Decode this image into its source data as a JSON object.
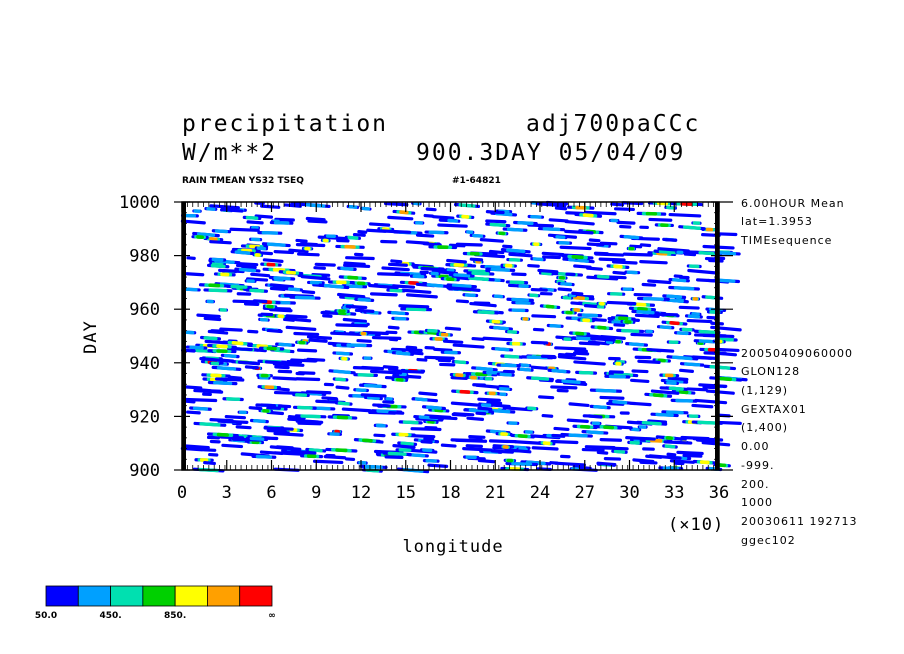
{
  "header": {
    "title_left": "precipitation",
    "title_right": "adj700paCCc",
    "units": "W/m**2",
    "time_stamp": "900.3DAY 05/04/09",
    "subtitle": "RAIN TMEAN YS32 TSEQ",
    "run_id": "#1-64821"
  },
  "right_info": {
    "line1": "6.00HOUR Mean",
    "line2": "lat=1.3953",
    "line3": "TIMEsequence",
    "line4": "20050409060000",
    "line5": "GLON128",
    "line6": "(1,129)",
    "line7": "GEXTAX01",
    "line8": "(1,400)",
    "line9": "0.00",
    "line10": "-999.",
    "line11": "200.",
    "line12": "1000",
    "line13": "20030611 192713",
    "line14": "ggec102"
  },
  "axes": {
    "xlabel": "longitude",
    "ylabel": "DAY",
    "x_multiplier": "(×10)"
  },
  "chart_data": {
    "type": "heatmap",
    "title": "precipitation",
    "xlabel": "longitude",
    "ylabel": "DAY",
    "xlim": [
      0,
      36
    ],
    "ylim": [
      900,
      1000
    ],
    "x_ticks": [
      "0",
      "3",
      "6",
      "9",
      "12",
      "15",
      "18",
      "21",
      "24",
      "27",
      "30",
      "33",
      "36"
    ],
    "y_ticks": [
      "900",
      "920",
      "940",
      "960",
      "980",
      "1000"
    ],
    "x_tick_values": [
      0,
      3,
      6,
      9,
      12,
      15,
      18,
      21,
      24,
      27,
      30,
      33,
      36
    ],
    "y_tick_values": [
      900,
      920,
      940,
      960,
      980,
      1000
    ],
    "x_multiplier": "(×10)",
    "colorbar": {
      "levels": [
        50,
        200,
        450,
        650,
        850,
        1050,
        1250
      ],
      "labels": [
        "50.0",
        "450.",
        "850.",
        "∞"
      ],
      "colors": [
        "#0000ff",
        "#00a0ff",
        "#00e0b0",
        "#00d000",
        "#ffff00",
        "#ffa000",
        "#ff0000"
      ]
    },
    "grid": false
  }
}
